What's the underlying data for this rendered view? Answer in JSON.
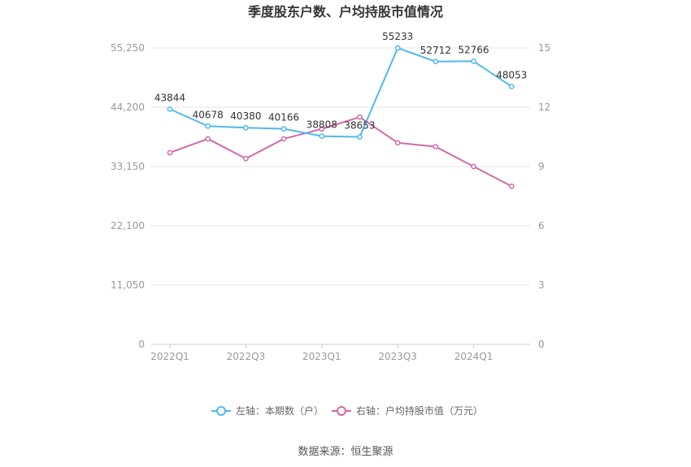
{
  "chart_data": {
    "type": "line",
    "title": "季度股东户数、户均持股市值情况",
    "x": [
      "2022Q1",
      "2022Q2",
      "2022Q3",
      "2022Q4",
      "2023Q1",
      "2023Q2",
      "2023Q3",
      "2023Q4",
      "2024Q1",
      "2024Q2"
    ],
    "x_tick_labels": [
      "2022Q1",
      "2022Q3",
      "2023Q1",
      "2023Q3",
      "2024Q1"
    ],
    "y_left": {
      "ylim": [
        0,
        55250
      ],
      "ticks": [
        0,
        11050,
        22100,
        33150,
        44200,
        55250
      ],
      "tick_labels": [
        "0",
        "11,050",
        "22,100",
        "33,150",
        "44,200",
        "55,250"
      ]
    },
    "y_right": {
      "ylim": [
        0,
        15
      ],
      "ticks": [
        0,
        3,
        6,
        9,
        12,
        15
      ],
      "tick_labels": [
        "0",
        "3",
        "6",
        "9",
        "12",
        "15"
      ]
    },
    "series": [
      {
        "name": "左轴：本期数（户）",
        "axis": "left",
        "color": "#4fb9ec",
        "values": [
          43844,
          40678,
          40380,
          40166,
          38808,
          38653,
          55233,
          52712,
          52766,
          48053
        ],
        "labels": [
          "43844",
          "40678",
          "40380",
          "40166",
          "38808",
          "38653",
          "55233",
          "52712",
          "52766",
          "48053"
        ]
      },
      {
        "name": "右轴：户均持股市值（万元）",
        "axis": "right",
        "color": "#d06aa8",
        "values": [
          9.7,
          10.4,
          9.4,
          10.4,
          10.9,
          11.5,
          10.2,
          10.0,
          9.0,
          8.0
        ]
      }
    ],
    "grid": true,
    "legend_position": "bottom",
    "source": "数据来源：恒生聚源"
  }
}
